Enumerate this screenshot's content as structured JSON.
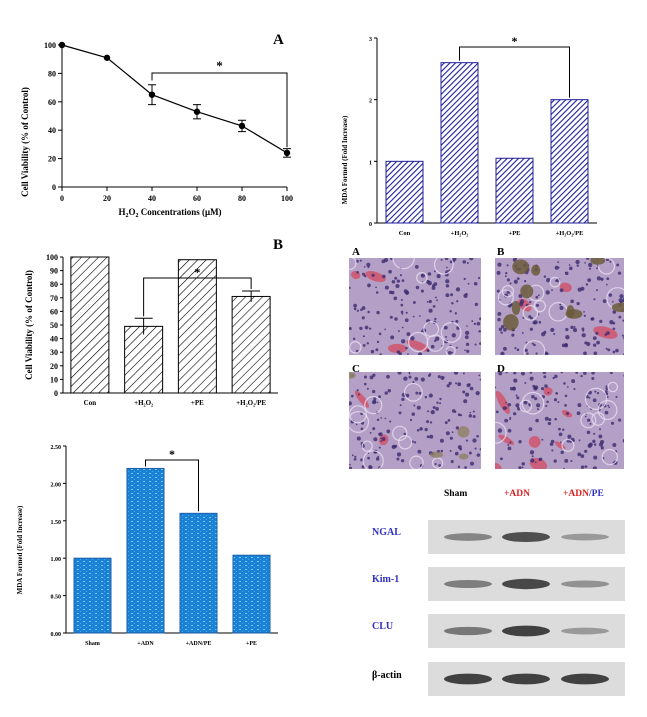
{
  "colors": {
    "line": "#000000",
    "navy": "#1f1f9a",
    "cyan_bar": "#1a82d6",
    "wb_label": "#3030c0",
    "red": "#e02020",
    "blue_text": "#3030c0",
    "histo_bg": "#b49fc6",
    "histo_pink": "#d44b62"
  },
  "chart_data": [
    {
      "id": "top-left",
      "panel_label": "A",
      "type": "line",
      "x": [
        0,
        20,
        40,
        60,
        80,
        100
      ],
      "y": [
        100,
        91,
        65,
        53,
        43,
        24
      ],
      "errors": [
        0,
        0,
        7,
        5,
        4,
        3
      ],
      "xlim": [
        0,
        100
      ],
      "ylim": [
        0,
        100
      ],
      "xticks": [
        "0",
        "20",
        "40",
        "60",
        "80",
        "100"
      ],
      "yticks": [
        "0",
        "20",
        "40",
        "60",
        "80",
        "100"
      ],
      "xlabel": "H2O2 Concentrations (μM)",
      "ylabel": "Cell Viability (% of Control)",
      "significance": {
        "from_x": 40,
        "to_x": 100,
        "label": "*"
      }
    },
    {
      "id": "top-right",
      "type": "bar",
      "categories": [
        "Con",
        "+H2O2",
        "+PE",
        "+H2O2/PE"
      ],
      "values": [
        1.0,
        2.6,
        1.05,
        2.0
      ],
      "ylim": [
        0,
        3
      ],
      "yticks": [
        "0",
        "1",
        "2",
        "3"
      ],
      "ylabel": "MDA Formed (Fold Increase)",
      "significance": {
        "from": 1,
        "to": 3,
        "label": "*"
      }
    },
    {
      "id": "mid-left",
      "panel_label": "B",
      "type": "bar",
      "categories": [
        "Con",
        "+H2O2",
        "+PE",
        "+H2O2/PE"
      ],
      "values": [
        100,
        49,
        98,
        71
      ],
      "errors": [
        0,
        6,
        0,
        4
      ],
      "ylim": [
        0,
        100
      ],
      "yticks": [
        "0",
        "10",
        "20",
        "30",
        "40",
        "50",
        "60",
        "70",
        "80",
        "90",
        "100"
      ],
      "ylabel": "Cell Viability (% of Control)",
      "significance": {
        "from": 1,
        "to": 3,
        "label": "*"
      }
    },
    {
      "id": "bottom-left",
      "type": "bar",
      "categories": [
        "Sham",
        "+ADN",
        "+ADN/PE",
        "+PE"
      ],
      "values": [
        1.0,
        2.2,
        1.6,
        1.04
      ],
      "ylim": [
        0,
        2.5
      ],
      "yticks": [
        "0.00",
        "0.50",
        "1.00",
        "1.50",
        "2.00",
        "2.50"
      ],
      "ylabel": "MDA Formed (Fold Increase)",
      "significance": {
        "from": 1,
        "to": 2,
        "label": "*"
      }
    }
  ],
  "histology": {
    "panels": [
      {
        "label": "A",
        "staining": "normal"
      },
      {
        "label": "B",
        "staining": "crystals"
      },
      {
        "label": "C",
        "staining": "mild"
      },
      {
        "label": "D",
        "staining": "congested"
      }
    ]
  },
  "western_blot": {
    "columns": [
      {
        "main": "Sham",
        "suffix": ""
      },
      {
        "main": "+ADN",
        "suffix": ""
      },
      {
        "main": "+ADN",
        "suffix": "/PE"
      }
    ],
    "rows": [
      {
        "label": "NGAL",
        "intensity": [
          0.45,
          0.85,
          0.3
        ]
      },
      {
        "label": "Kim-1",
        "intensity": [
          0.5,
          0.9,
          0.35
        ]
      },
      {
        "label": "CLU",
        "intensity": [
          0.55,
          0.95,
          0.3
        ]
      },
      {
        "label": "β-actin",
        "intensity": [
          0.95,
          0.95,
          0.95
        ]
      }
    ]
  }
}
